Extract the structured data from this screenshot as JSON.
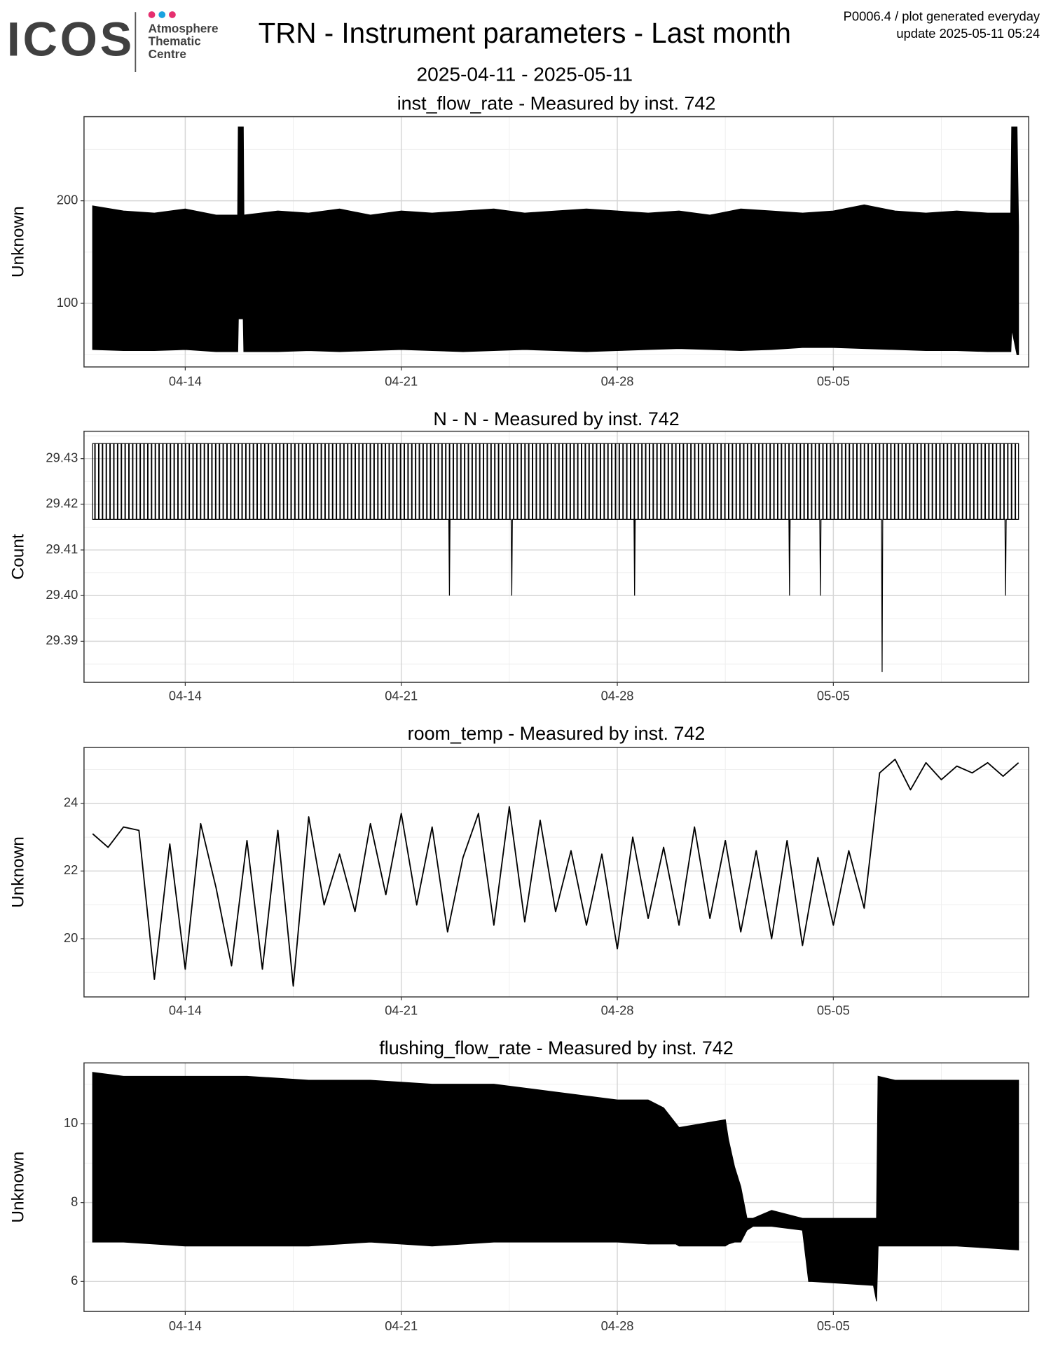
{
  "header": {
    "logo": "ICOS",
    "logo_lines": [
      "Atmosphere",
      "Thematic",
      "Centre"
    ],
    "title": "TRN - Instrument parameters - Last month",
    "subtitle": "2025-04-11 - 2025-05-11",
    "note_lines": [
      "P0006.4 / plot generated everyday",
      "update  2025-05-11 05:24"
    ]
  },
  "chart_data": [
    {
      "type": "range",
      "title": "inst_flow_rate - Measured by inst. 742",
      "y_label": "Unknown",
      "color": "#000000",
      "grid": true,
      "x": [
        101,
        102,
        103,
        104,
        105,
        105.7,
        105.72,
        105.88,
        105.9,
        107,
        108,
        109,
        110,
        111,
        112,
        113,
        114,
        115,
        116,
        117,
        118,
        119,
        120,
        121,
        122,
        123,
        124,
        125,
        126,
        127,
        128,
        129,
        130,
        130.75,
        130.78,
        130.95,
        131.0
      ],
      "high": [
        195,
        190,
        188,
        192,
        186,
        186,
        272,
        272,
        186,
        190,
        188,
        192,
        186,
        190,
        188,
        190,
        192,
        188,
        190,
        192,
        190,
        188,
        190,
        186,
        192,
        190,
        188,
        190,
        196,
        190,
        188,
        190,
        188,
        188,
        272,
        272,
        175
      ],
      "low": [
        55,
        54,
        54,
        55,
        53,
        53,
        85,
        85,
        53,
        53,
        54,
        53,
        54,
        55,
        54,
        53,
        54,
        55,
        54,
        53,
        54,
        55,
        56,
        55,
        54,
        55,
        57,
        57,
        56,
        55,
        54,
        54,
        53,
        53,
        75,
        50,
        50
      ],
      "xlim": [
        100.72,
        131.33
      ],
      "xticks": [
        {
          "value": 104,
          "label": "04-14"
        },
        {
          "value": 111,
          "label": "04-21"
        },
        {
          "value": 118,
          "label": "04-28"
        },
        {
          "value": 125,
          "label": "05-05"
        }
      ],
      "ylim": [
        38,
        282
      ],
      "yticks": [
        100,
        200
      ]
    },
    {
      "type": "range",
      "title": "N - N - Measured by inst. 742",
      "y_label": "Count",
      "color": "#000000",
      "grid": true,
      "x": [
        101,
        112.54,
        112.56,
        112.58,
        114.56,
        114.58,
        114.6,
        118.54,
        118.56,
        118.58,
        123.56,
        123.58,
        123.6,
        124.56,
        124.58,
        124.6,
        126.56,
        126.58,
        126.6,
        130.56,
        130.58,
        130.6,
        131
      ],
      "high": [
        29.4333,
        29.4333,
        29.4333,
        29.4333,
        29.4333,
        29.4333,
        29.4333,
        29.4333,
        29.4333,
        29.4333,
        29.4333,
        29.4333,
        29.4333,
        29.4333,
        29.4333,
        29.4333,
        29.4333,
        29.4333,
        29.4333,
        29.4333,
        29.4333,
        29.4333,
        29.4333
      ],
      "low": [
        29.4167,
        29.4167,
        29.4,
        29.4167,
        29.4167,
        29.4,
        29.4167,
        29.4167,
        29.4,
        29.4167,
        29.4167,
        29.4,
        29.4167,
        29.4167,
        29.4,
        29.4167,
        29.4167,
        29.3833,
        29.4167,
        29.4167,
        29.4,
        29.4167,
        29.4167
      ],
      "xlim": [
        100.72,
        131.33
      ],
      "xticks": [
        {
          "value": 104,
          "label": "04-14"
        },
        {
          "value": 111,
          "label": "04-21"
        },
        {
          "value": 118,
          "label": "04-28"
        },
        {
          "value": 125,
          "label": "05-05"
        }
      ],
      "ylim": [
        29.381,
        29.436
      ],
      "yticks": [
        29.39,
        {
          "value": 29.4,
          "label": "29.40"
        },
        29.41,
        29.42,
        29.43
      ]
    },
    {
      "type": "line",
      "title": "room_temp - Measured by inst. 742",
      "y_label": "Unknown",
      "color": "#000000",
      "grid": true,
      "x": [
        101,
        101.5,
        102,
        102.5,
        103,
        103.5,
        104,
        104.5,
        105,
        105.5,
        106,
        106.5,
        107,
        107.5,
        108,
        108.5,
        109,
        109.5,
        110,
        110.5,
        111,
        111.5,
        112,
        112.5,
        113,
        113.5,
        114,
        114.5,
        115,
        115.5,
        116,
        116.5,
        117,
        117.5,
        118,
        118.5,
        119,
        119.5,
        120,
        120.5,
        121,
        121.5,
        122,
        122.5,
        123,
        123.5,
        124,
        124.5,
        125,
        125.5,
        126,
        126.5,
        127,
        127.5,
        128,
        128.5,
        129,
        129.5,
        130,
        130.5,
        131
      ],
      "values": [
        23.1,
        22.7,
        23.3,
        23.2,
        18.8,
        22.8,
        19.1,
        23.4,
        21.5,
        19.2,
        22.9,
        19.1,
        23.2,
        18.6,
        23.6,
        21.0,
        22.5,
        20.8,
        23.4,
        21.3,
        23.7,
        21.0,
        23.3,
        20.2,
        22.4,
        23.7,
        20.4,
        23.9,
        20.5,
        23.5,
        20.8,
        22.6,
        20.4,
        22.5,
        19.7,
        23.0,
        20.6,
        22.7,
        20.4,
        23.3,
        20.6,
        22.9,
        20.2,
        22.6,
        20.0,
        22.9,
        19.8,
        22.4,
        20.4,
        22.6,
        20.9,
        24.9,
        25.3,
        24.4,
        25.2,
        24.7,
        25.1,
        24.9,
        25.2,
        24.8,
        25.2
      ],
      "xlim": [
        100.72,
        131.33
      ],
      "xticks": [
        {
          "value": 104,
          "label": "04-14"
        },
        {
          "value": 111,
          "label": "04-21"
        },
        {
          "value": 118,
          "label": "04-28"
        },
        {
          "value": 125,
          "label": "05-05"
        }
      ],
      "ylim": [
        18.28,
        25.65
      ],
      "yticks": [
        20,
        22,
        24
      ]
    },
    {
      "type": "range",
      "title": "flushing_flow_rate - Measured by inst. 742",
      "y_label": "Unknown",
      "color": "#000000",
      "grid": true,
      "x": [
        101,
        102,
        104,
        106,
        108,
        110,
        112,
        114,
        116,
        117,
        118,
        119.0,
        119.5,
        119.9,
        120.0,
        121.5,
        121.6,
        121.8,
        122.0,
        122.2,
        122.4,
        123.0,
        124.0,
        124.2,
        124.3,
        126.3,
        126.4,
        126.45,
        127,
        129,
        131
      ],
      "high": [
        11.3,
        11.2,
        11.2,
        11.2,
        11.1,
        11.1,
        11.0,
        11.0,
        10.8,
        10.7,
        10.6,
        10.6,
        10.4,
        10.0,
        9.9,
        10.1,
        9.6,
        8.9,
        8.4,
        7.6,
        7.6,
        7.8,
        7.6,
        7.6,
        7.6,
        7.6,
        7.6,
        11.2,
        11.1,
        11.1,
        11.1
      ],
      "low": [
        7.0,
        7.0,
        6.9,
        6.9,
        6.9,
        7.0,
        6.9,
        7.0,
        7.0,
        7.0,
        7.0,
        6.95,
        6.95,
        6.95,
        6.9,
        6.9,
        6.95,
        7.0,
        7.0,
        7.3,
        7.4,
        7.4,
        7.3,
        6.0,
        6.0,
        5.9,
        5.5,
        6.9,
        6.9,
        6.9,
        6.8
      ],
      "xlim": [
        100.72,
        131.33
      ],
      "xticks": [
        {
          "value": 104,
          "label": "04-14"
        },
        {
          "value": 111,
          "label": "04-21"
        },
        {
          "value": 118,
          "label": "04-28"
        },
        {
          "value": 125,
          "label": "05-05"
        }
      ],
      "ylim": [
        5.24,
        11.54
      ],
      "yticks": [
        6,
        8,
        10
      ]
    }
  ]
}
